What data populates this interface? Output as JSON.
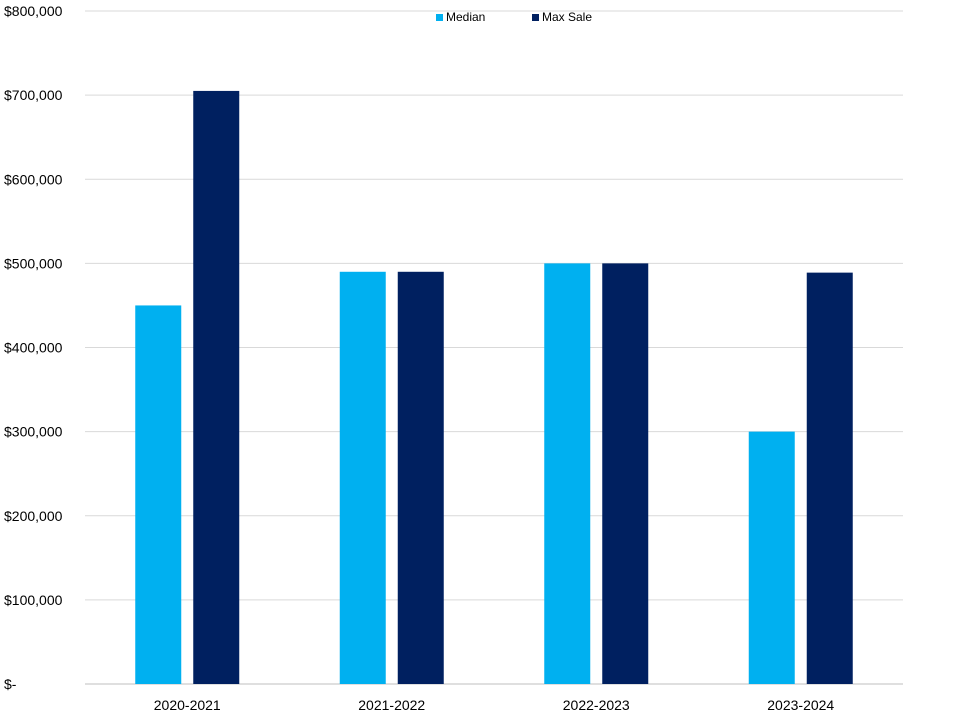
{
  "chart_data": {
    "type": "bar",
    "categories": [
      "2020-2021",
      "2021-2022",
      "2022-2023",
      "2023-2024"
    ],
    "series": [
      {
        "name": "Median",
        "values": [
          450000,
          490000,
          500000,
          300000
        ],
        "color": "#00B0F0"
      },
      {
        "name": "Max Sale",
        "values": [
          705000,
          490000,
          500000,
          489000
        ],
        "color": "#002060"
      }
    ],
    "ylim": [
      0,
      800000
    ],
    "y_ticks": [
      0,
      100000,
      200000,
      300000,
      400000,
      500000,
      600000,
      700000,
      800000
    ],
    "y_tick_labels": [
      "$-",
      "$100,000",
      "$200,000",
      "$300,000",
      "$400,000",
      "$500,000",
      "$600,000",
      "$700,000",
      "$800,000"
    ],
    "grid": true,
    "legend_position": "top-center",
    "gridline_color": "#D9D9D9"
  }
}
